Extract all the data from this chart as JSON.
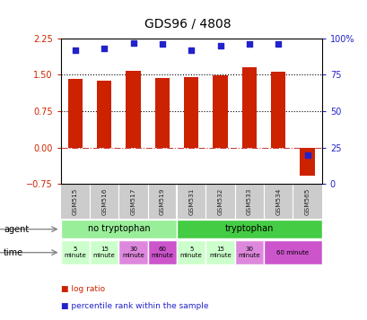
{
  "title": "GDS96 / 4808",
  "samples": [
    "GSM515",
    "GSM516",
    "GSM517",
    "GSM519",
    "GSM531",
    "GSM532",
    "GSM533",
    "GSM534",
    "GSM565"
  ],
  "log_ratio": [
    1.42,
    1.38,
    1.58,
    1.44,
    1.46,
    1.49,
    1.65,
    1.57,
    -0.58
  ],
  "percentile": [
    92,
    93,
    97,
    96,
    92,
    95,
    96,
    96,
    20
  ],
  "bar_color": "#cc2200",
  "dot_color": "#2222cc",
  "ylim_left": [
    -0.75,
    2.25
  ],
  "ylim_right": [
    0,
    100
  ],
  "yticks_left": [
    -0.75,
    0,
    0.75,
    1.5,
    2.25
  ],
  "yticks_right": [
    0,
    25,
    50,
    75,
    100
  ],
  "hlines": [
    0,
    0.75,
    1.5
  ],
  "hline_styles": [
    "dashdot",
    "dotted",
    "dotted"
  ],
  "hline_colors": [
    "#cc4444",
    "#000000",
    "#000000"
  ],
  "agent_labels": [
    {
      "text": "no tryptophan",
      "start": 0,
      "end": 4,
      "color": "#99ee99"
    },
    {
      "text": "tryptophan",
      "start": 4,
      "end": 9,
      "color": "#44cc44"
    }
  ],
  "time_labels": [
    {
      "text": "5\nminute",
      "start": 0,
      "end": 1,
      "color": "#ccffcc"
    },
    {
      "text": "15\nminute",
      "start": 1,
      "end": 2,
      "color": "#ccffcc"
    },
    {
      "text": "30\nminute",
      "start": 2,
      "end": 3,
      "color": "#dd88dd"
    },
    {
      "text": "60\nminute",
      "start": 3,
      "end": 4,
      "color": "#cc55cc"
    },
    {
      "text": "5\nminute",
      "start": 4,
      "end": 5,
      "color": "#ccffcc"
    },
    {
      "text": "15\nminute",
      "start": 5,
      "end": 6,
      "color": "#ccffcc"
    },
    {
      "text": "30\nminute",
      "start": 6,
      "end": 7,
      "color": "#dd88dd"
    },
    {
      "text": "60 minute",
      "start": 7,
      "end": 9,
      "color": "#cc55cc"
    }
  ],
  "legend_items": [
    {
      "label": "log ratio",
      "color": "#cc2200"
    },
    {
      "label": "percentile rank within the sample",
      "color": "#2222cc"
    }
  ],
  "background_color": "#ffffff",
  "plot_bg_color": "#ffffff",
  "sample_bg_color": "#cccccc",
  "tick_label_color_left": "#cc2200",
  "tick_label_color_right": "#2222cc",
  "bar_width": 0.5,
  "title_fontsize": 10
}
